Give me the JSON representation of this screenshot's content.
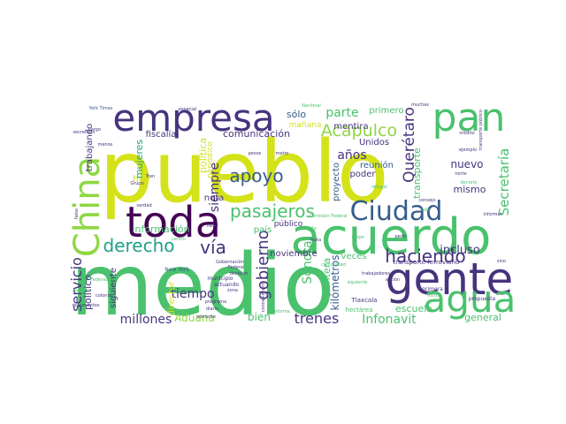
{
  "palette": {
    "yellow": "#d4e21a",
    "lime": "#8fd744",
    "green": "#4ac16d",
    "teal": "#1fa187",
    "blue": "#277f8e",
    "navy": "#365c8d",
    "indigo": "#46337e",
    "purple": "#440154"
  },
  "words": [
    {
      "text": "pueblo",
      "color": "yellow"
    },
    {
      "text": "medio",
      "color": "green"
    },
    {
      "text": "toda",
      "color": "purple"
    },
    {
      "text": "acuerdo",
      "color": "green"
    },
    {
      "text": "empresa",
      "color": "indigo"
    },
    {
      "text": "pan",
      "color": "green"
    },
    {
      "text": "gente",
      "color": "indigo"
    },
    {
      "text": "agua",
      "color": "green"
    },
    {
      "text": "China",
      "color": "lime"
    },
    {
      "text": "Ciudad",
      "color": "navy"
    },
    {
      "text": "haciendo",
      "color": "indigo"
    },
    {
      "text": "pasajeros",
      "color": "green"
    },
    {
      "text": "derecho",
      "color": "teal"
    },
    {
      "text": "apoyo",
      "color": "navy"
    },
    {
      "text": "vía",
      "color": "indigo"
    },
    {
      "text": "Acapulco",
      "color": "lime"
    },
    {
      "text": "gobierno",
      "color": "indigo"
    },
    {
      "text": "servicio",
      "color": "indigo"
    },
    {
      "text": "Querétaro",
      "color": "indigo"
    },
    {
      "text": "Secretaría",
      "color": "green"
    },
    {
      "text": "trenes",
      "color": "indigo"
    },
    {
      "text": "Infonavit",
      "color": "green"
    },
    {
      "text": "millones",
      "color": "indigo"
    },
    {
      "text": "tiempo",
      "color": "indigo"
    },
    {
      "text": "Sonora",
      "color": "green"
    },
    {
      "text": "siempre",
      "color": "indigo"
    },
    {
      "text": "Aduana",
      "color": "lime"
    },
    {
      "text": "parte",
      "color": "green"
    },
    {
      "text": "años",
      "color": "indigo"
    },
    {
      "text": "kilómetros",
      "color": "navy"
    },
    {
      "text": "incluso",
      "color": "indigo"
    },
    {
      "text": "político",
      "color": "indigo"
    },
    {
      "text": "información",
      "color": "green"
    },
    {
      "text": "bien",
      "color": "green"
    },
    {
      "text": "escuela",
      "color": "green"
    },
    {
      "text": "general",
      "color": "green"
    },
    {
      "text": "frontera",
      "color": "green"
    },
    {
      "text": "siguiente",
      "color": "indigo"
    },
    {
      "text": "director",
      "color": "yellow"
    },
    {
      "text": "hoy",
      "color": "yellow"
    },
    {
      "text": "comunicación",
      "color": "indigo"
    },
    {
      "text": "política",
      "color": "yellow"
    },
    {
      "text": "mujeres",
      "color": "teal"
    },
    {
      "text": "transporte",
      "color": "green"
    },
    {
      "text": "nuevo",
      "color": "indigo"
    },
    {
      "text": "mismo",
      "color": "indigo"
    },
    {
      "text": "sólo",
      "color": "navy"
    },
    {
      "text": "trabajando",
      "color": "indigo"
    },
    {
      "text": "fiscalía",
      "color": "indigo"
    },
    {
      "text": "noviembre",
      "color": "indigo"
    },
    {
      "text": "Unidos",
      "color": "indigo"
    },
    {
      "text": "poder",
      "color": "indigo"
    },
    {
      "text": "proyecto",
      "color": "navy"
    },
    {
      "text": "reunión",
      "color": "navy"
    },
    {
      "text": "primero",
      "color": "green"
    },
    {
      "text": "mentira",
      "color": "indigo"
    },
    {
      "text": "mañana",
      "color": "yellow"
    },
    {
      "text": "nota",
      "color": "indigo"
    },
    {
      "text": "país",
      "color": "green"
    },
    {
      "text": "público",
      "color": "indigo"
    },
    {
      "text": "veces",
      "color": "green"
    },
    {
      "text": "periódico",
      "color": "yellow"
    },
    {
      "text": "Tlaxcala",
      "color": "indigo"
    },
    {
      "text": "hectárea",
      "color": "green"
    },
    {
      "text": "transporte ferroviario",
      "color": "indigo"
    },
    {
      "text": "primera",
      "color": "indigo"
    },
    {
      "text": "propuesta",
      "color": "indigo"
    },
    {
      "text": "New York",
      "color": "navy"
    },
    {
      "text": "municipio",
      "color": "indigo"
    },
    {
      "text": "actuando",
      "color": "indigo"
    },
    {
      "text": "Gobernación",
      "color": "indigo"
    },
    {
      "text": "Federal",
      "color": "indigo"
    },
    {
      "text": "decisión",
      "color": "indigo"
    },
    {
      "text": "Comisión Federal",
      "color": "green"
    },
    {
      "text": "distrito",
      "color": "green"
    },
    {
      "text": "documentos",
      "color": "indigo"
    },
    {
      "text": "York Times",
      "color": "navy"
    },
    {
      "text": "secretario",
      "color": "indigo"
    },
    {
      "text": "Nacional",
      "color": "green"
    },
    {
      "text": "especial",
      "color": "indigo"
    },
    {
      "text": "ejemplo",
      "color": "indigo"
    },
    {
      "text": "crédito",
      "color": "indigo"
    },
    {
      "text": "programa",
      "color": "indigo"
    },
    {
      "text": "falso",
      "color": "indigo"
    },
    {
      "text": "cargo",
      "color": "indigo"
    },
    {
      "text": "menos",
      "color": "indigo"
    },
    {
      "text": "muchas",
      "color": "indigo"
    },
    {
      "text": "diario",
      "color": "indigo"
    },
    {
      "text": "justicia",
      "color": "green"
    },
    {
      "text": "colonia",
      "color": "indigo"
    },
    {
      "text": "Grupo",
      "color": "indigo"
    },
    {
      "text": "Tren",
      "color": "indigo"
    },
    {
      "text": "refugio",
      "color": "green"
    },
    {
      "text": "pedir",
      "color": "indigo"
    },
    {
      "text": "informar",
      "color": "indigo"
    },
    {
      "text": "sino",
      "color": "indigo"
    },
    {
      "text": "nunca",
      "color": "green"
    },
    {
      "text": "mejor",
      "color": "green"
    },
    {
      "text": "verdad",
      "color": "indigo"
    },
    {
      "text": "consejo",
      "color": "indigo"
    },
    {
      "text": "transporte público",
      "color": "indigo"
    },
    {
      "text": "trabajadores",
      "color": "indigo"
    },
    {
      "text": "trata",
      "color": "indigo"
    },
    {
      "text": "zona",
      "color": "indigo"
    },
    {
      "text": "fiscal",
      "color": "indigo"
    },
    {
      "text": "siguiente",
      "color": "green"
    },
    {
      "text": "norte",
      "color": "indigo"
    },
    {
      "text": "decreto",
      "color": "green"
    },
    {
      "text": "concesionario",
      "color": "indigo"
    },
    {
      "text": "Federación",
      "color": "green"
    },
    {
      "text": "centro",
      "color": "green"
    },
    {
      "text": "metro",
      "color": "indigo"
    },
    {
      "text": "pesos",
      "color": "indigo"
    },
    {
      "text": "comunidad",
      "color": "green"
    },
    {
      "text": "reforma",
      "color": "green"
    },
    {
      "text": "lado",
      "color": "green"
    },
    {
      "text": "adelante",
      "color": "indigo"
    },
    {
      "text": "acción",
      "color": "indigo"
    }
  ]
}
